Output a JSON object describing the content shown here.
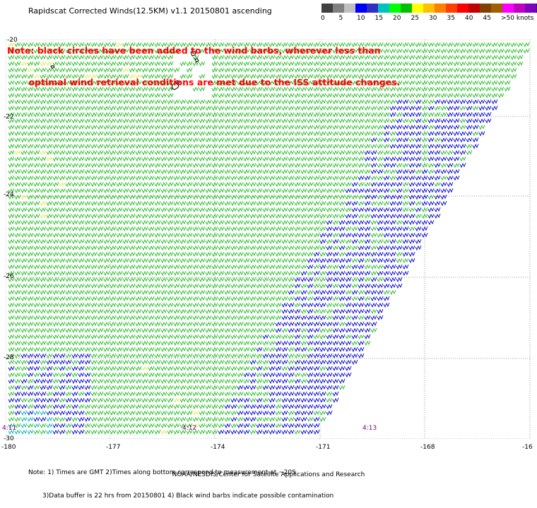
{
  "title": "Rapidscat Corrected Winds(12.5KM) v1.1 20150801 ascending",
  "note_lines": [
    "Note: black circles have been added to the wind barbs, wherever less than",
    "       optimal wind retrieval conditions are met due to the ISS attitude changes."
  ],
  "colorbar": {
    "labels": [
      "0",
      "5",
      "10",
      "15",
      "20",
      "25",
      "30",
      "35",
      "40",
      "45",
      ">50 knots"
    ],
    "colors": [
      "#404040",
      "#808080",
      "#c0c0c0",
      "#0000ff",
      "#3030c0",
      "#00c0c0",
      "#00ff00",
      "#00c000",
      "#ffff00",
      "#ffc000",
      "#ff8000",
      "#ff4000",
      "#ff0000",
      "#c00000",
      "#804000",
      "#a06000",
      "#ff00ff",
      "#c000c0",
      "#8000c0",
      "#400080"
    ]
  },
  "map": {
    "lat_labels": [
      "-20",
      "-22",
      "-24",
      "-26",
      "-28",
      "-30"
    ],
    "lon_labels": [
      "-180",
      "-177",
      "-174",
      "-171",
      "-168",
      "-16"
    ],
    "times": [
      "4:11",
      "4:12",
      "4:13"
    ],
    "barb_colors": {
      "green": "#22bb22",
      "blue": "#0000cc",
      "yellow": "#e6e65a",
      "cyan": "#00b0b0",
      "black": "#000000"
    }
  },
  "footnote": [
    "Note: 1) Times are GMT 2)Times along bottom correspond to measurement at ~20S",
    "       3)Data buffer is 22 hrs from 20150801 4) Black wind barbs indicate possible contamination"
  ],
  "credit": "NOAA/NESDIS/Center for Satellite Applications and Research"
}
